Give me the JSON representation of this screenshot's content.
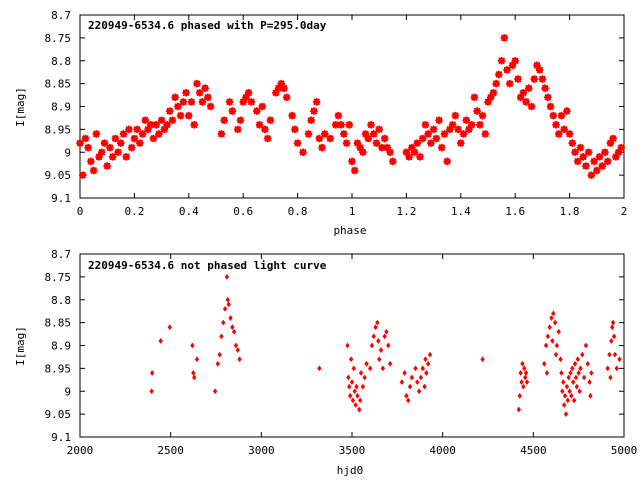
{
  "chart_data": [
    {
      "type": "scatter",
      "title": "220949-6534.6 phased with P=295.0day",
      "xlabel": "phase",
      "ylabel": "I[mag]",
      "xlim": [
        0,
        2
      ],
      "ylim": [
        9.1,
        8.7
      ],
      "y_inverted": true,
      "xticks": [
        0,
        0.2,
        0.4,
        0.6,
        0.8,
        1,
        1.2,
        1.4,
        1.6,
        1.8,
        2
      ],
      "xtick_labels": [
        "0",
        "0.2",
        "0.4",
        "0.6",
        "0.8",
        "1",
        "1.2",
        "1.4",
        "1.6",
        "1.8",
        "2"
      ],
      "yticks": [
        8.7,
        8.75,
        8.8,
        8.85,
        8.9,
        8.95,
        9,
        9.05,
        9.1
      ],
      "ytick_labels": [
        "8.7",
        "8.75",
        "8.8",
        "8.85",
        "8.9",
        "8.95",
        "9",
        "9.05",
        "9.1"
      ],
      "grid": false,
      "marker_color": "#ff0000",
      "points": [
        [
          0.0,
          8.98
        ],
        [
          0.01,
          9.05
        ],
        [
          0.02,
          8.97
        ],
        [
          0.03,
          8.99
        ],
        [
          0.04,
          9.02
        ],
        [
          0.05,
          9.04
        ],
        [
          0.06,
          8.96
        ],
        [
          0.07,
          9.01
        ],
        [
          0.08,
          9.0
        ],
        [
          0.09,
          8.98
        ],
        [
          0.1,
          9.03
        ],
        [
          0.11,
          8.99
        ],
        [
          0.12,
          9.01
        ],
        [
          0.13,
          8.97
        ],
        [
          0.14,
          9.0
        ],
        [
          0.15,
          8.98
        ],
        [
          0.16,
          8.96
        ],
        [
          0.17,
          9.01
        ],
        [
          0.18,
          8.95
        ],
        [
          0.19,
          8.99
        ],
        [
          0.2,
          8.97
        ],
        [
          0.21,
          8.95
        ],
        [
          0.22,
          8.98
        ],
        [
          0.23,
          8.96
        ],
        [
          0.24,
          8.93
        ],
        [
          0.25,
          8.95
        ],
        [
          0.26,
          8.94
        ],
        [
          0.27,
          8.97
        ],
        [
          0.28,
          8.94
        ],
        [
          0.29,
          8.96
        ],
        [
          0.3,
          8.93
        ],
        [
          0.31,
          8.95
        ],
        [
          0.32,
          8.94
        ],
        [
          0.33,
          8.91
        ],
        [
          0.34,
          8.93
        ],
        [
          0.35,
          8.88
        ],
        [
          0.36,
          8.9
        ],
        [
          0.37,
          8.92
        ],
        [
          0.38,
          8.89
        ],
        [
          0.39,
          8.87
        ],
        [
          0.4,
          8.92
        ],
        [
          0.41,
          8.89
        ],
        [
          0.42,
          8.94
        ],
        [
          0.43,
          8.85
        ],
        [
          0.44,
          8.87
        ],
        [
          0.45,
          8.89
        ],
        [
          0.46,
          8.86
        ],
        [
          0.47,
          8.88
        ],
        [
          0.48,
          8.9
        ],
        [
          0.52,
          8.96
        ],
        [
          0.53,
          8.93
        ],
        [
          0.55,
          8.89
        ],
        [
          0.56,
          8.91
        ],
        [
          0.58,
          8.95
        ],
        [
          0.59,
          8.93
        ],
        [
          0.6,
          8.89
        ],
        [
          0.61,
          8.88
        ],
        [
          0.62,
          8.87
        ],
        [
          0.63,
          8.89
        ],
        [
          0.65,
          8.91
        ],
        [
          0.66,
          8.94
        ],
        [
          0.67,
          8.9
        ],
        [
          0.68,
          8.95
        ],
        [
          0.69,
          8.97
        ],
        [
          0.7,
          8.93
        ],
        [
          0.72,
          8.87
        ],
        [
          0.73,
          8.86
        ],
        [
          0.74,
          8.85
        ],
        [
          0.75,
          8.86
        ],
        [
          0.76,
          8.88
        ],
        [
          0.78,
          8.92
        ],
        [
          0.79,
          8.95
        ],
        [
          0.8,
          8.98
        ],
        [
          0.82,
          9.0
        ],
        [
          0.84,
          8.96
        ],
        [
          0.85,
          8.93
        ],
        [
          0.86,
          8.91
        ],
        [
          0.87,
          8.89
        ],
        [
          0.88,
          8.97
        ],
        [
          0.89,
          8.99
        ],
        [
          0.9,
          8.96
        ],
        [
          0.92,
          8.97
        ],
        [
          0.94,
          8.94
        ],
        [
          0.95,
          8.92
        ],
        [
          0.96,
          8.94
        ],
        [
          0.97,
          8.96
        ],
        [
          0.98,
          8.98
        ],
        [
          0.99,
          8.94
        ],
        [
          1.0,
          9.02
        ],
        [
          1.01,
          9.04
        ],
        [
          1.02,
          8.98
        ],
        [
          1.03,
          8.99
        ],
        [
          1.04,
          9.0
        ],
        [
          1.05,
          8.96
        ],
        [
          1.06,
          8.97
        ],
        [
          1.07,
          8.94
        ],
        [
          1.08,
          8.96
        ],
        [
          1.09,
          8.98
        ],
        [
          1.1,
          8.95
        ],
        [
          1.11,
          8.99
        ],
        [
          1.12,
          8.97
        ],
        [
          1.13,
          8.99
        ],
        [
          1.14,
          9.0
        ],
        [
          1.15,
          9.02
        ],
        [
          1.2,
          9.0
        ],
        [
          1.21,
          9.01
        ],
        [
          1.22,
          8.99
        ],
        [
          1.23,
          9.0
        ],
        [
          1.24,
          8.98
        ],
        [
          1.25,
          9.01
        ],
        [
          1.26,
          8.97
        ],
        [
          1.27,
          8.94
        ],
        [
          1.28,
          8.96
        ],
        [
          1.29,
          8.98
        ],
        [
          1.3,
          8.95
        ],
        [
          1.31,
          8.97
        ],
        [
          1.32,
          8.93
        ],
        [
          1.33,
          8.99
        ],
        [
          1.34,
          8.96
        ],
        [
          1.35,
          9.02
        ],
        [
          1.36,
          8.95
        ],
        [
          1.37,
          8.94
        ],
        [
          1.38,
          8.92
        ],
        [
          1.39,
          8.95
        ],
        [
          1.4,
          8.98
        ],
        [
          1.41,
          8.96
        ],
        [
          1.42,
          8.93
        ],
        [
          1.43,
          8.95
        ],
        [
          1.44,
          8.94
        ],
        [
          1.45,
          8.88
        ],
        [
          1.46,
          8.91
        ],
        [
          1.47,
          8.94
        ],
        [
          1.48,
          8.92
        ],
        [
          1.49,
          8.96
        ],
        [
          1.5,
          8.89
        ],
        [
          1.51,
          8.88
        ],
        [
          1.52,
          8.87
        ],
        [
          1.53,
          8.85
        ],
        [
          1.54,
          8.83
        ],
        [
          1.55,
          8.8
        ],
        [
          1.56,
          8.75
        ],
        [
          1.57,
          8.82
        ],
        [
          1.58,
          8.85
        ],
        [
          1.59,
          8.81
        ],
        [
          1.6,
          8.8
        ],
        [
          1.61,
          8.84
        ],
        [
          1.62,
          8.88
        ],
        [
          1.63,
          8.87
        ],
        [
          1.64,
          8.89
        ],
        [
          1.65,
          8.86
        ],
        [
          1.66,
          8.9
        ],
        [
          1.67,
          8.84
        ],
        [
          1.68,
          8.81
        ],
        [
          1.69,
          8.82
        ],
        [
          1.7,
          8.84
        ],
        [
          1.71,
          8.86
        ],
        [
          1.72,
          8.88
        ],
        [
          1.73,
          8.9
        ],
        [
          1.74,
          8.92
        ],
        [
          1.75,
          8.94
        ],
        [
          1.76,
          8.96
        ],
        [
          1.77,
          8.92
        ],
        [
          1.78,
          8.95
        ],
        [
          1.79,
          8.91
        ],
        [
          1.8,
          8.96
        ],
        [
          1.81,
          8.98
        ],
        [
          1.82,
          9.0
        ],
        [
          1.83,
          9.02
        ],
        [
          1.84,
          8.99
        ],
        [
          1.85,
          9.01
        ],
        [
          1.86,
          9.03
        ],
        [
          1.87,
          9.0
        ],
        [
          1.88,
          9.05
        ],
        [
          1.89,
          9.02
        ],
        [
          1.9,
          9.04
        ],
        [
          1.91,
          9.01
        ],
        [
          1.92,
          9.03
        ],
        [
          1.93,
          9.0
        ],
        [
          1.94,
          9.02
        ],
        [
          1.95,
          8.98
        ],
        [
          1.96,
          8.97
        ],
        [
          1.97,
          9.01
        ],
        [
          1.98,
          9.0
        ],
        [
          1.99,
          8.99
        ]
      ]
    },
    {
      "type": "scatter",
      "title": "220949-6534.6 not phased light curve",
      "xlabel": "hjd0",
      "ylabel": "I[mag]",
      "xlim": [
        2000,
        5000
      ],
      "ylim": [
        9.1,
        8.7
      ],
      "y_inverted": true,
      "xticks": [
        2000,
        2500,
        3000,
        3500,
        4000,
        4500,
        5000
      ],
      "xtick_labels": [
        "2000",
        "2500",
        "3000",
        "3500",
        "4000",
        "4500",
        "5000"
      ],
      "yticks": [
        8.7,
        8.75,
        8.8,
        8.85,
        8.9,
        8.95,
        9,
        9.05,
        9.1
      ],
      "ytick_labels": [
        "8.7",
        "8.75",
        "8.8",
        "8.85",
        "8.9",
        "8.95",
        "9",
        "9.05",
        "9.1"
      ],
      "grid": false,
      "marker_color": "#ff0000",
      "points": [
        [
          2395,
          9.0
        ],
        [
          2398,
          8.96
        ],
        [
          2445,
          8.89
        ],
        [
          2495,
          8.86
        ],
        [
          2620,
          8.9
        ],
        [
          2625,
          8.96
        ],
        [
          2630,
          8.97
        ],
        [
          2645,
          8.93
        ],
        [
          2745,
          9.0
        ],
        [
          2760,
          8.94
        ],
        [
          2770,
          8.92
        ],
        [
          2780,
          8.88
        ],
        [
          2790,
          8.85
        ],
        [
          2800,
          8.82
        ],
        [
          2810,
          8.75
        ],
        [
          2815,
          8.8
        ],
        [
          2820,
          8.81
        ],
        [
          2830,
          8.84
        ],
        [
          2840,
          8.86
        ],
        [
          2850,
          8.87
        ],
        [
          2860,
          8.9
        ],
        [
          2870,
          8.91
        ],
        [
          2880,
          8.93
        ],
        [
          3320,
          8.95
        ],
        [
          3475,
          8.9
        ],
        [
          3480,
          8.97
        ],
        [
          3485,
          8.99
        ],
        [
          3490,
          9.01
        ],
        [
          3495,
          8.93
        ],
        [
          3500,
          8.98
        ],
        [
          3505,
          9.02
        ],
        [
          3510,
          8.95
        ],
        [
          3515,
          9.0
        ],
        [
          3520,
          9.03
        ],
        [
          3525,
          8.99
        ],
        [
          3530,
          9.01
        ],
        [
          3540,
          9.04
        ],
        [
          3545,
          9.02
        ],
        [
          3550,
          8.96
        ],
        [
          3560,
          8.99
        ],
        [
          3570,
          8.97
        ],
        [
          3580,
          8.94
        ],
        [
          3600,
          8.95
        ],
        [
          3610,
          8.9
        ],
        [
          3620,
          8.88
        ],
        [
          3630,
          8.86
        ],
        [
          3640,
          8.85
        ],
        [
          3645,
          8.89
        ],
        [
          3650,
          8.93
        ],
        [
          3660,
          8.91
        ],
        [
          3670,
          8.95
        ],
        [
          3680,
          8.88
        ],
        [
          3690,
          8.87
        ],
        [
          3700,
          8.9
        ],
        [
          3710,
          8.94
        ],
        [
          3775,
          8.98
        ],
        [
          3790,
          8.96
        ],
        [
          3800,
          9.01
        ],
        [
          3810,
          9.02
        ],
        [
          3820,
          8.99
        ],
        [
          3830,
          8.97
        ],
        [
          3850,
          8.95
        ],
        [
          3860,
          8.98
        ],
        [
          3870,
          9.0
        ],
        [
          3880,
          8.97
        ],
        [
          3890,
          8.95
        ],
        [
          3900,
          8.99
        ],
        [
          3905,
          8.93
        ],
        [
          3910,
          8.96
        ],
        [
          3920,
          8.94
        ],
        [
          3930,
          8.92
        ],
        [
          4220,
          8.93
        ],
        [
          4420,
          9.04
        ],
        [
          4425,
          9.01
        ],
        [
          4430,
          8.96
        ],
        [
          4435,
          8.98
        ],
        [
          4440,
          8.94
        ],
        [
          4445,
          8.99
        ],
        [
          4450,
          8.95
        ],
        [
          4455,
          8.97
        ],
        [
          4460,
          8.96
        ],
        [
          4465,
          8.98
        ],
        [
          4560,
          8.94
        ],
        [
          4570,
          8.9
        ],
        [
          4575,
          8.96
        ],
        [
          4580,
          8.88
        ],
        [
          4590,
          8.86
        ],
        [
          4600,
          8.84
        ],
        [
          4605,
          8.89
        ],
        [
          4610,
          8.83
        ],
        [
          4620,
          8.85
        ],
        [
          4625,
          8.92
        ],
        [
          4630,
          8.9
        ],
        [
          4640,
          8.87
        ],
        [
          4650,
          8.93
        ],
        [
          4655,
          8.96
        ],
        [
          4660,
          9.0
        ],
        [
          4665,
          8.98
        ],
        [
          4670,
          9.03
        ],
        [
          4675,
          9.01
        ],
        [
          4680,
          9.05
        ],
        [
          4685,
          8.99
        ],
        [
          4690,
          9.02
        ],
        [
          4695,
          8.97
        ],
        [
          4700,
          9.0
        ],
        [
          4705,
          8.96
        ],
        [
          4710,
          9.01
        ],
        [
          4715,
          8.95
        ],
        [
          4720,
          8.98
        ],
        [
          4725,
          9.02
        ],
        [
          4730,
          8.94
        ],
        [
          4735,
          8.97
        ],
        [
          4740,
          8.99
        ],
        [
          4745,
          8.93
        ],
        [
          4750,
          8.96
        ],
        [
          4755,
          9.0
        ],
        [
          4760,
          8.95
        ],
        [
          4770,
          8.92
        ],
        [
          4780,
          8.97
        ],
        [
          4790,
          8.9
        ],
        [
          4800,
          8.94
        ],
        [
          4810,
          8.98
        ],
        [
          4815,
          9.01
        ],
        [
          4820,
          8.96
        ],
        [
          4910,
          8.95
        ],
        [
          4920,
          8.92
        ],
        [
          4925,
          8.97
        ],
        [
          4930,
          8.89
        ],
        [
          4935,
          8.86
        ],
        [
          4940,
          8.85
        ],
        [
          4945,
          8.88
        ],
        [
          4950,
          8.92
        ],
        [
          4960,
          8.95
        ],
        [
          4975,
          8.93
        ]
      ]
    }
  ]
}
